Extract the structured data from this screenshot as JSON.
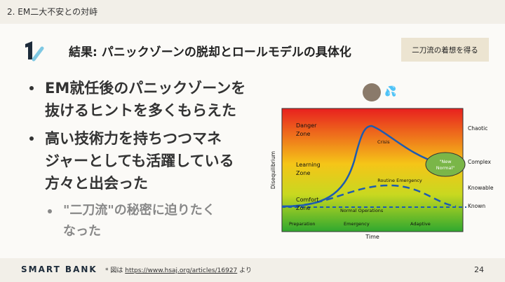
{
  "header": {
    "section": "2. EM二大不安との対峙"
  },
  "slide": {
    "title": "結果: パニックゾーンの脱却とロールモデルの具体化",
    "tag": "二刀流の着想を得る",
    "bullets": [
      {
        "lines": [
          "EM就任後のパニックゾーンを",
          "抜けるヒントを多くもらえた"
        ]
      },
      {
        "lines": [
          "高い技術力を持ちつつマネ",
          "ジャーとしても活躍している",
          "方々と出会った"
        ]
      }
    ],
    "sub_bullets": [
      {
        "lines": [
          "\"二刀流\"の秘密に迫りたく",
          "なった"
        ]
      }
    ]
  },
  "figure": {
    "zones": [
      {
        "lines": [
          "Danger",
          "Zone"
        ]
      },
      {
        "lines": [
          "Learning",
          "Zone"
        ]
      },
      {
        "lines": [
          "Comfort",
          "Zone"
        ]
      }
    ],
    "curve_labels": {
      "crisis": "Crisis",
      "new_normal": [
        "\"New",
        "Normal\""
      ],
      "routine": "Routine Emergency",
      "normal": "Normal Operations"
    },
    "phases": [
      "Preparation",
      "Emergency",
      "Adaptive"
    ],
    "x_axis": "Time",
    "y_axis": "Disequilibrium",
    "levels": [
      "Chaotic",
      "Complex",
      "Knowable",
      "Known"
    ]
  },
  "footer": {
    "brand": "SMART BANK",
    "note_prefix": "* 図は",
    "link": "https://www.hsaj.org/articles/16927",
    "note_suffix": "より",
    "page": "24"
  }
}
